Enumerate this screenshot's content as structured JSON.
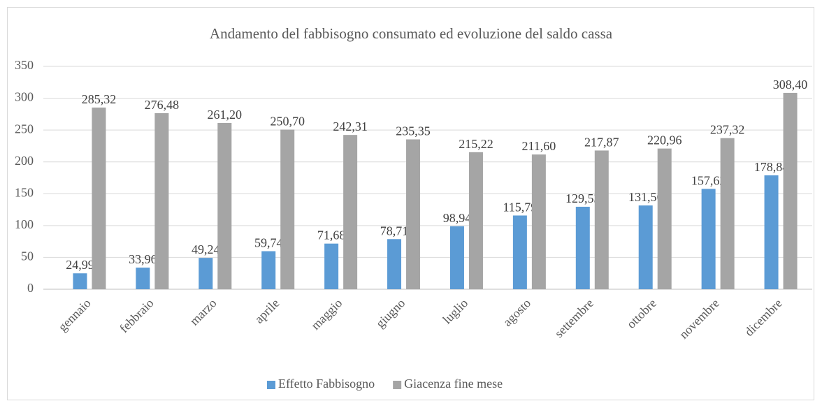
{
  "chart_data": {
    "type": "bar",
    "title": "Andamento del fabbisogno consumato ed evoluzione del saldo cassa",
    "categories": [
      "gennaio",
      "febbraio",
      "marzo",
      "aprile",
      "maggio",
      "giugno",
      "luglio",
      "agosto",
      "settembre",
      "ottobre",
      "novembre",
      "dicembre"
    ],
    "series": [
      {
        "name": "Effetto Fabbisogno",
        "color": "#5b9bd5",
        "values": [
          24.99,
          33.96,
          49.24,
          59.74,
          71.68,
          78.71,
          98.94,
          115.79,
          129.53,
          131.56,
          157.62,
          178.84
        ],
        "value_labels": [
          "24,99",
          "33,96",
          "49,24",
          "59,74",
          "71,68",
          "78,71",
          "98,94",
          "115,79",
          "129,53",
          "131,56",
          "157,62",
          "178,84"
        ]
      },
      {
        "name": "Giacenza fine mese",
        "color": "#a5a5a5",
        "values": [
          285.32,
          276.48,
          261.2,
          250.7,
          242.31,
          235.35,
          215.22,
          211.6,
          217.87,
          220.96,
          237.32,
          308.4
        ],
        "value_labels": [
          "285,32",
          "276,48",
          "261,20",
          "250,70",
          "242,31",
          "235,35",
          "215,22",
          "211,60",
          "217,87",
          "220,96",
          "237,32",
          "308,40"
        ]
      }
    ],
    "ylim": [
      0,
      350
    ],
    "yticks": [
      0,
      50,
      100,
      150,
      200,
      250,
      300,
      350
    ],
    "grid": true,
    "legend": "bottom"
  }
}
